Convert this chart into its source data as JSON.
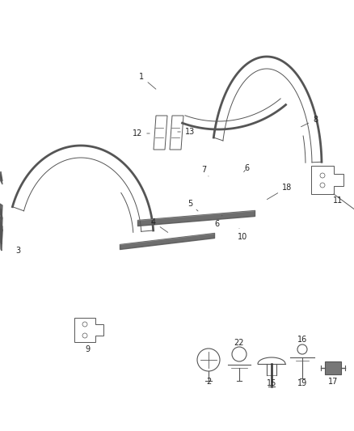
{
  "bg_color": "#ffffff",
  "fig_width": 4.38,
  "fig_height": 5.33,
  "dpi": 100,
  "line_color": "#555555",
  "label_fontsize": 7,
  "label_color": "#222222"
}
